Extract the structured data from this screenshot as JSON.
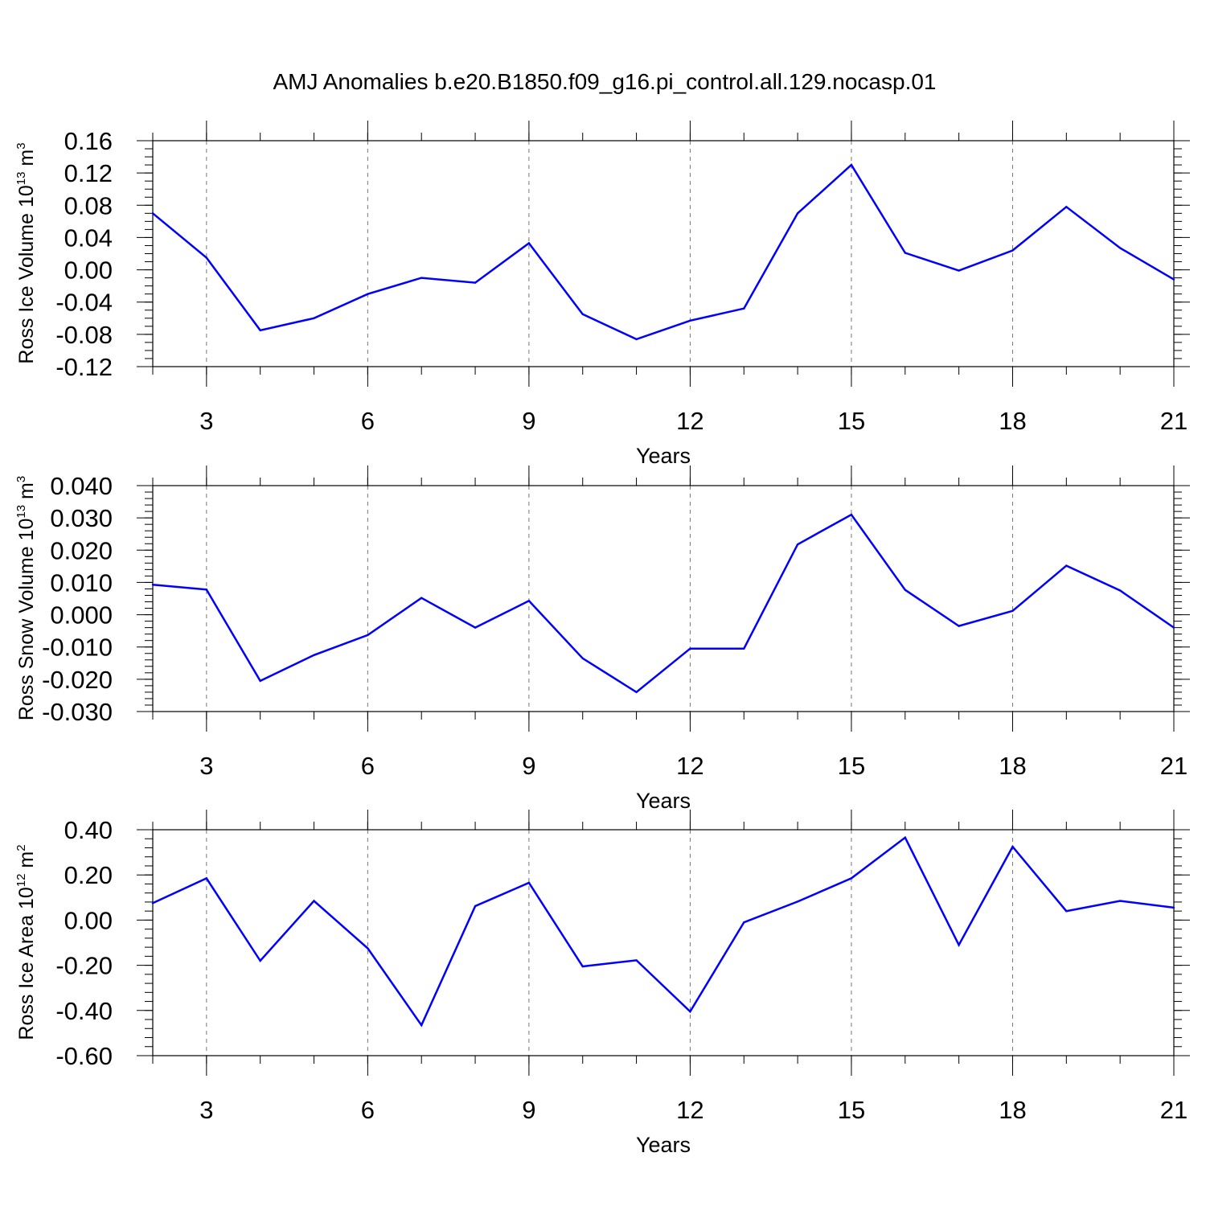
{
  "title": "AMJ Anomalies b.e20.B1850.f09_g16.pi_control.all.129.nocasp.01",
  "line_color": "#0000ff",
  "chart_data": [
    {
      "type": "line",
      "ylabel_text": "Ross Ice Volume 10",
      "ylabel_exp": "13",
      "ylabel_unit": " m",
      "ylabel_unit_exp": "3",
      "xlabel": "Years",
      "xlim": [
        2,
        21
      ],
      "ylim": [
        -0.12,
        0.16
      ],
      "xticks": [
        "3",
        "6",
        "9",
        "12",
        "15",
        "18",
        "21"
      ],
      "yticks": [
        "0.16",
        "0.12",
        "0.08",
        "0.04",
        "0.00",
        "-0.04",
        "-0.08",
        "-0.12"
      ],
      "x": [
        2,
        3,
        4,
        5,
        6,
        7,
        8,
        9,
        10,
        11,
        12,
        13,
        14,
        15,
        16,
        17,
        18,
        19,
        20,
        21
      ],
      "values": [
        0.07,
        0.015,
        -0.075,
        -0.06,
        -0.03,
        -0.01,
        -0.016,
        0.033,
        -0.055,
        -0.086,
        -0.063,
        -0.048,
        0.07,
        0.13,
        0.021,
        -0.001,
        0.024,
        0.078,
        0.027,
        -0.012
      ]
    },
    {
      "type": "line",
      "ylabel_text": "Ross Snow Volume 10",
      "ylabel_exp": "13",
      "ylabel_unit": " m",
      "ylabel_unit_exp": "3",
      "xlabel": "Years",
      "xlim": [
        2,
        21
      ],
      "ylim": [
        -0.03,
        0.04
      ],
      "xticks": [
        "3",
        "6",
        "9",
        "12",
        "15",
        "18",
        "21"
      ],
      "yticks": [
        "0.040",
        "0.030",
        "0.020",
        "0.010",
        "0.000",
        "-0.010",
        "-0.020",
        "-0.030"
      ],
      "x": [
        2,
        3,
        4,
        5,
        6,
        7,
        8,
        9,
        10,
        11,
        12,
        13,
        14,
        15,
        16,
        17,
        18,
        19,
        20,
        21
      ],
      "values": [
        0.0093,
        0.0078,
        -0.0205,
        -0.0125,
        -0.0063,
        0.0052,
        -0.004,
        0.0043,
        -0.0135,
        -0.024,
        -0.0105,
        -0.0105,
        0.0218,
        0.031,
        0.0077,
        -0.0035,
        0.0012,
        0.0152,
        0.0075,
        -0.004
      ]
    },
    {
      "type": "line",
      "ylabel_text": "Ross Ice Area 10",
      "ylabel_exp": "12",
      "ylabel_unit": " m",
      "ylabel_unit_exp": "2",
      "xlabel": "Years",
      "xlim": [
        2,
        21
      ],
      "ylim": [
        -0.6,
        0.4
      ],
      "xticks": [
        "3",
        "6",
        "9",
        "12",
        "15",
        "18",
        "21"
      ],
      "yticks": [
        "0.40",
        "0.20",
        "0.00",
        "-0.20",
        "-0.40",
        "-0.60"
      ],
      "x": [
        2,
        3,
        4,
        5,
        6,
        7,
        8,
        9,
        10,
        11,
        12,
        13,
        14,
        15,
        16,
        17,
        18,
        19,
        20,
        21
      ],
      "values": [
        0.075,
        0.185,
        -0.18,
        0.085,
        -0.125,
        -0.465,
        0.062,
        0.165,
        -0.205,
        -0.178,
        -0.405,
        -0.01,
        0.082,
        0.185,
        0.365,
        -0.11,
        0.325,
        0.04,
        0.085,
        0.055
      ]
    }
  ]
}
